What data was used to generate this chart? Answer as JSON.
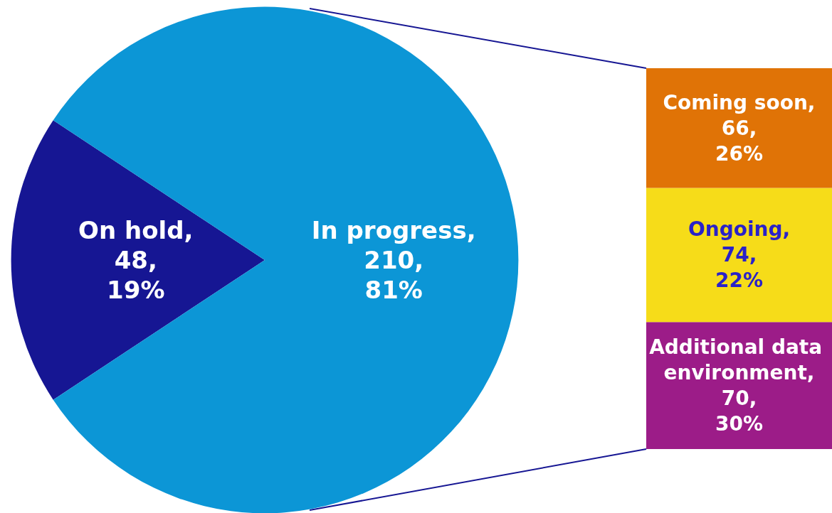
{
  "chart_data": [
    {
      "type": "pie",
      "categories": [
        "On hold",
        "In progress"
      ],
      "values": [
        48,
        210
      ],
      "colors": [
        "#161693",
        "#0c96d6"
      ],
      "value_labels": [
        ",\n48,\n19%",
        ",\n210,\n81%"
      ]
    },
    {
      "type": "bar",
      "stacked": true,
      "categories": [
        null
      ],
      "series": [
        {
          "name": "Additional data environment,",
          "color": "#9c1c88",
          "values": [
            70
          ],
          "value_labels": [
            "70,\n30%"
          ]
        },
        {
          "name": "Ongoing,",
          "color": "#f6dc19",
          "values": [
            74
          ],
          "value_labels": [
            "74,\n22%"
          ]
        },
        {
          "name": "Coming soon,",
          "color": "#e07306",
          "values": [
            66
          ],
          "value_labels": [
            "66,\n26%"
          ]
        }
      ]
    }
  ]
}
